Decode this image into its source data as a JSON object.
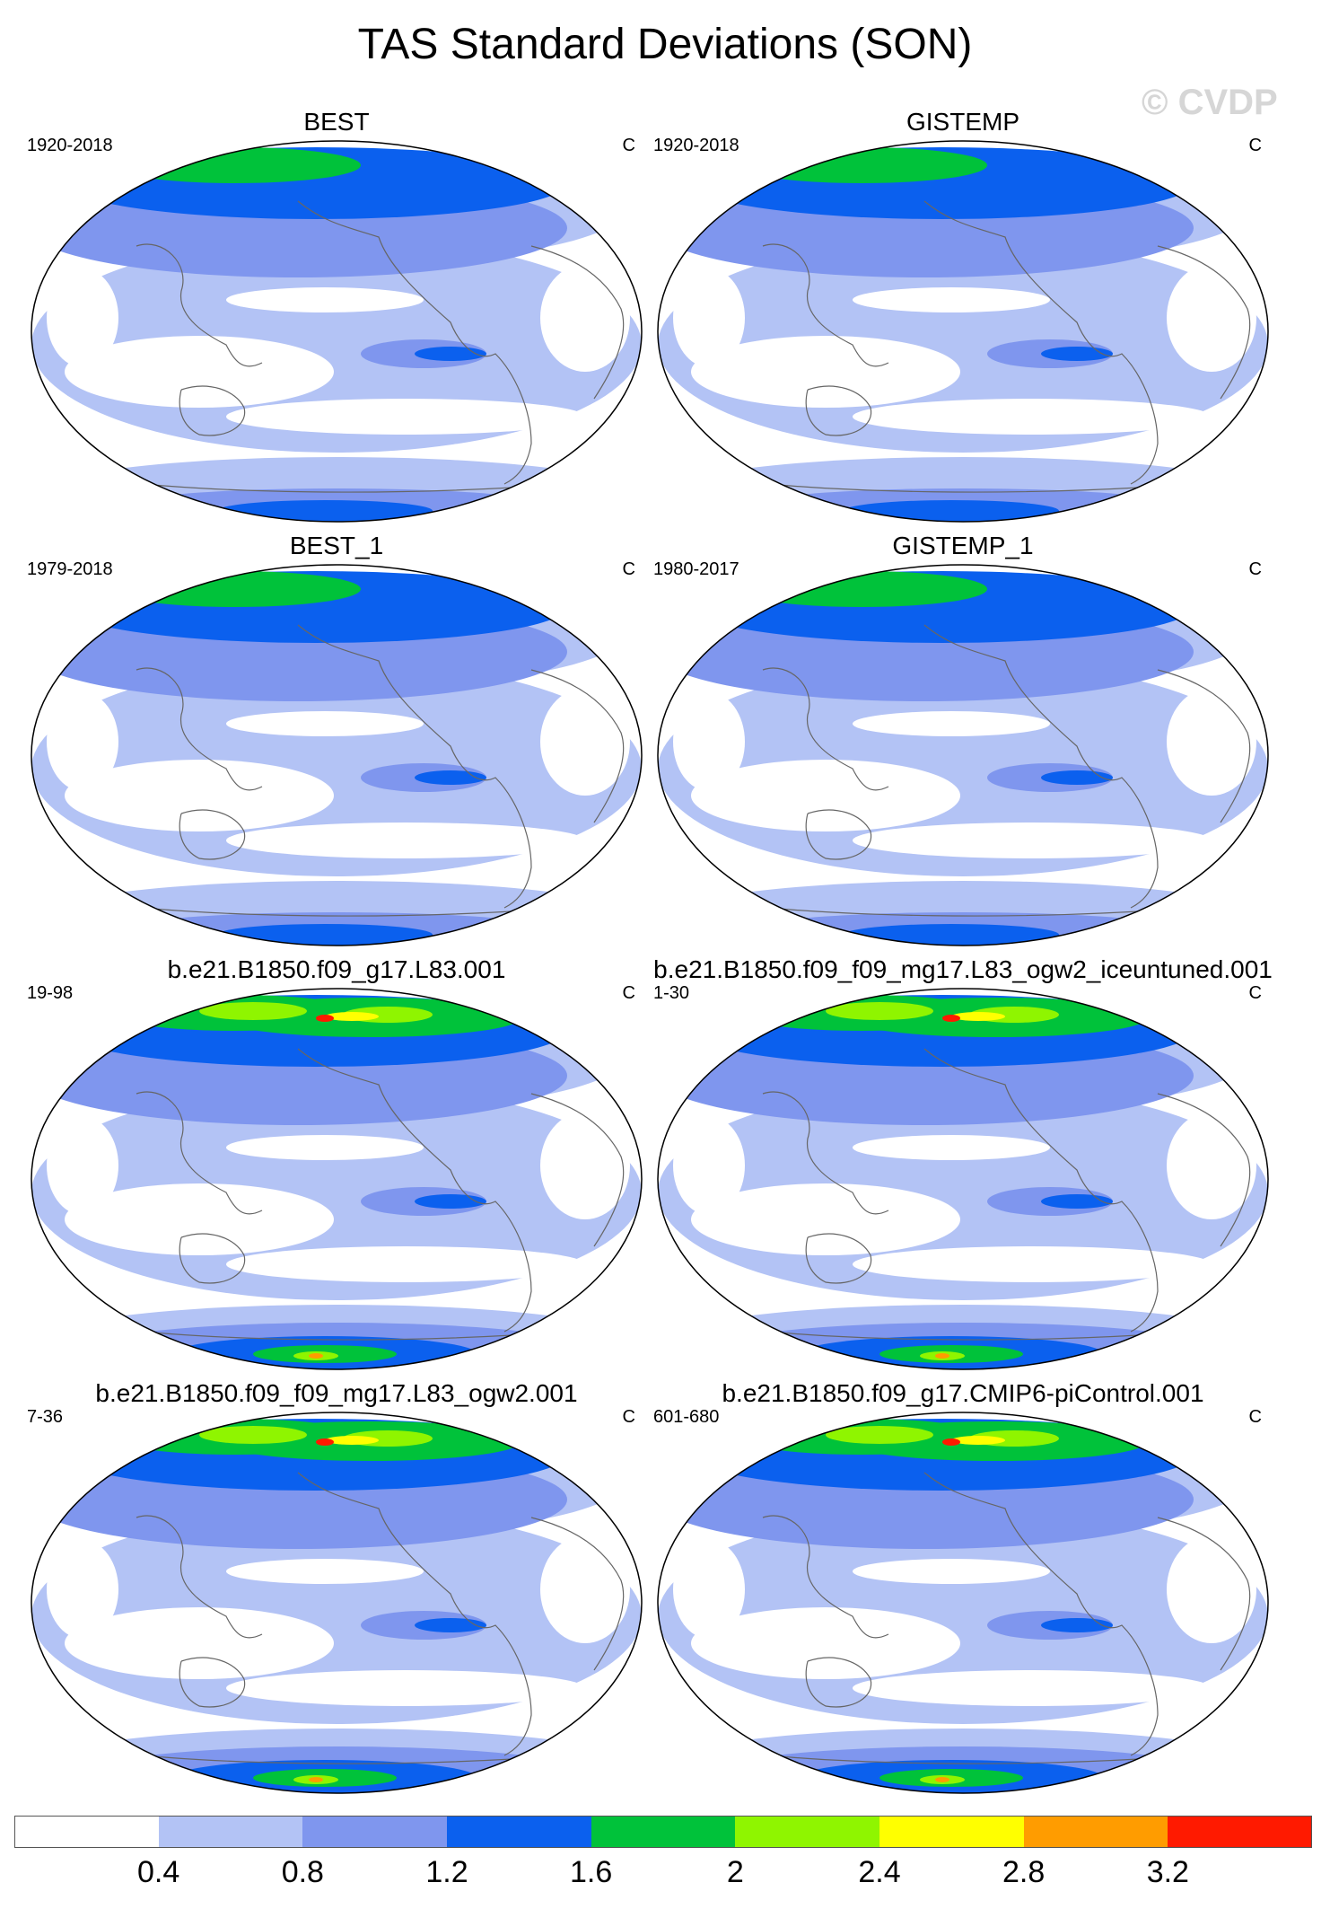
{
  "title": "TAS Standard Deviations (SON)",
  "watermark": "© CVDP",
  "panels": [
    {
      "title": "BEST",
      "period": "1920-2018",
      "units": "C"
    },
    {
      "title": "GISTEMP",
      "period": "1920-2018",
      "units": "C"
    },
    {
      "title": "BEST_1",
      "period": "1979-2018",
      "units": "C"
    },
    {
      "title": "GISTEMP_1",
      "period": "1980-2017",
      "units": "C"
    },
    {
      "title": "b.e21.B1850.f09_g17.L83.001",
      "period": "19-98",
      "units": "C"
    },
    {
      "title": "b.e21.B1850.f09_f09_mg17.L83_ogw2_iceuntuned.001",
      "period": "1-30",
      "units": "C"
    },
    {
      "title": "b.e21.B1850.f09_f09_mg17.L83_ogw2.001",
      "period": "7-36",
      "units": "C"
    },
    {
      "title": "b.e21.B1850.f09_g17.CMIP6-piControl.001",
      "period": "601-680",
      "units": "C"
    }
  ],
  "colorbar": {
    "labels": [
      "0.4",
      "0.8",
      "1.2",
      "1.6",
      "2",
      "2.4",
      "2.8",
      "3.2"
    ],
    "colors": [
      "#ffffff",
      "#b3c3f5",
      "#7f96ee",
      "#0b60ee",
      "#00c23a",
      "#8ff500",
      "#ffff00",
      "#ff9c00",
      "#ff1a00"
    ]
  }
}
